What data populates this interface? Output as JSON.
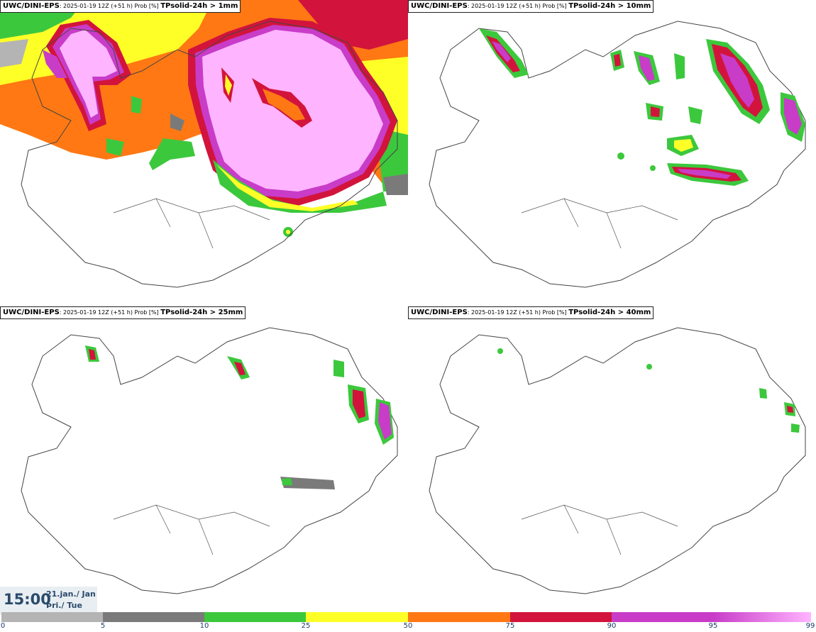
{
  "panels": [
    {
      "model": "UWC/DINI-EPS",
      "meta": ": 2025-01-19 12Z (+51 h) Prob [%] ",
      "variable": "TPsolid-24h > 1mm"
    },
    {
      "model": "UWC/DINI-EPS",
      "meta": ": 2025-01-19 12Z (+51 h) Prob [%] ",
      "variable": "TPsolid-24h > 10mm"
    },
    {
      "model": "UWC/DINI-EPS",
      "meta": ": 2025-01-19 12Z (+51 h) Prob [%] ",
      "variable": "TPsolid-24h > 25mm"
    },
    {
      "model": "UWC/DINI-EPS",
      "meta": ": 2025-01-19 12Z (+51 h) Prob [%] ",
      "variable": "TPsolid-24h > 40mm"
    }
  ],
  "time": {
    "clock": "15:00",
    "date": "21.jan./ Jan",
    "weekday": "Þri./ Tue"
  },
  "colorbar": {
    "ticks": [
      "0",
      "5",
      "10",
      "25",
      "50",
      "75",
      "90",
      "95",
      "99"
    ],
    "colors": [
      "#ffffff",
      "#b4b4b4",
      "#7a7a7a",
      "#3cc83c",
      "#ffff28",
      "#ff7814",
      "#d2143c",
      "#c83cc8",
      "#ffb4ff"
    ]
  }
}
